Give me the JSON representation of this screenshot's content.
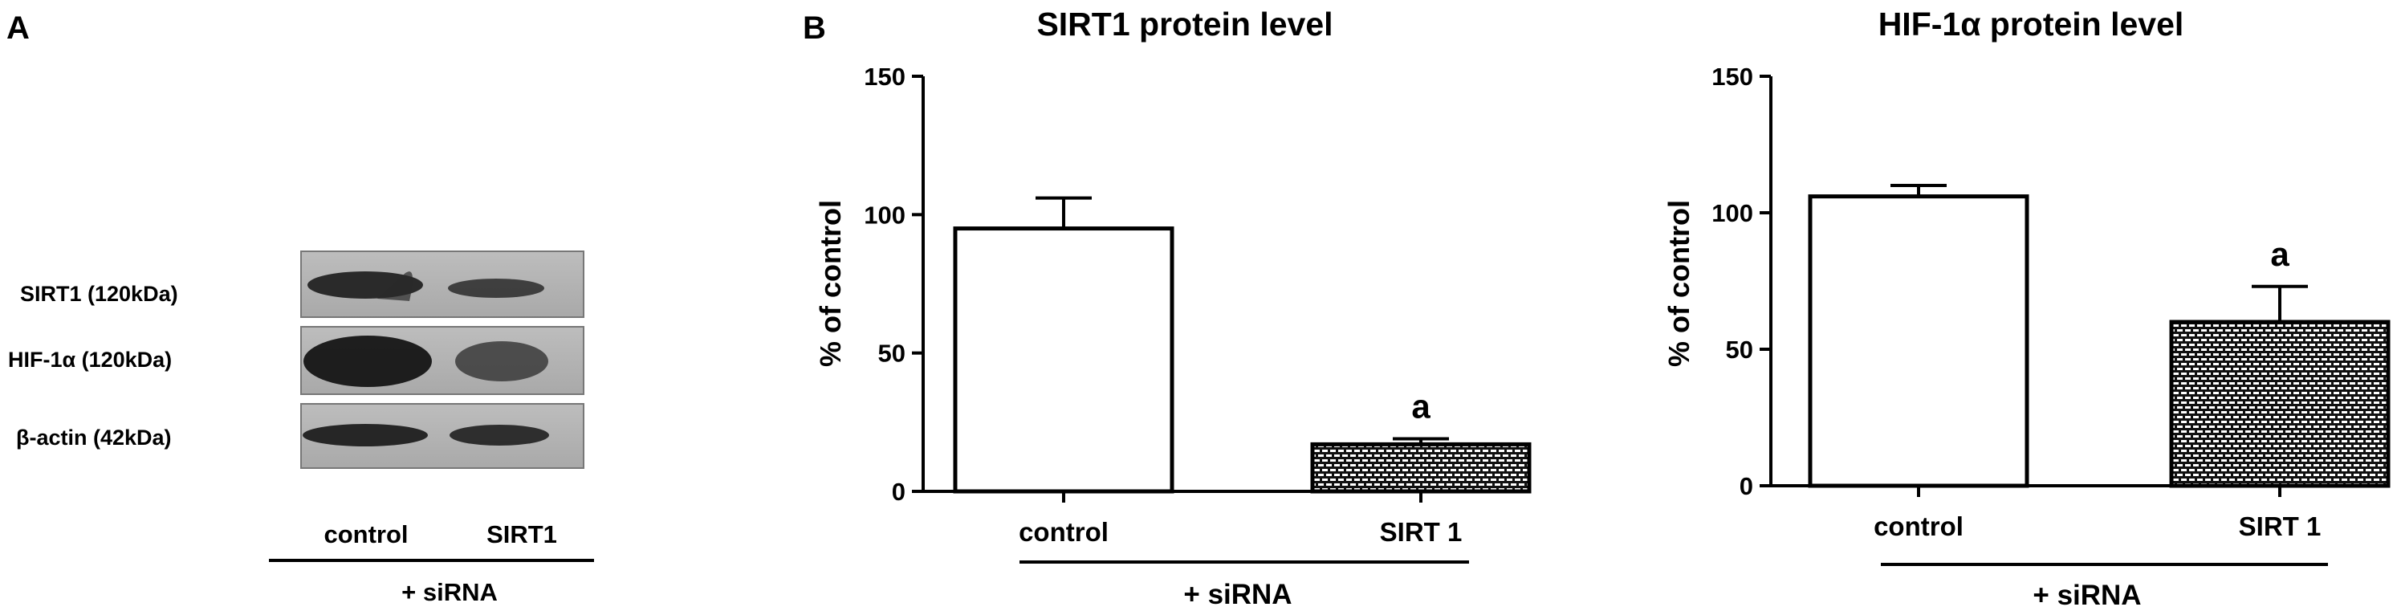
{
  "panel_a": {
    "letter": "A",
    "blot_rows": [
      {
        "label": "SIRT1 (120kDa)"
      },
      {
        "label": "HIF-1α (120kDa)"
      },
      {
        "label": "β-actin (42kDa)"
      }
    ],
    "lanes": [
      "control",
      "SIRT1"
    ],
    "group_label": "+ siRNA"
  },
  "panel_b": {
    "letter": "B"
  },
  "chart_data": [
    {
      "type": "bar",
      "title": "SIRT1 protein level",
      "ylabel": "% of control",
      "ylim": [
        0,
        150
      ],
      "yticks": [
        "0",
        "50",
        "100",
        "150"
      ],
      "categories": [
        "control",
        "SIRT 1"
      ],
      "values": [
        95,
        17
      ],
      "errors": [
        11,
        2
      ],
      "annotations": [
        "",
        "a"
      ],
      "patterns": [
        "open",
        "brick"
      ],
      "group_label": "+ siRNA"
    },
    {
      "type": "bar",
      "title": "HIF-1α protein level",
      "ylabel": "% of control",
      "ylim": [
        0,
        150
      ],
      "yticks": [
        "0",
        "50",
        "100",
        "150"
      ],
      "categories": [
        "control",
        "SIRT 1"
      ],
      "values": [
        106,
        60
      ],
      "errors": [
        4,
        13
      ],
      "annotations": [
        "",
        "a"
      ],
      "patterns": [
        "open",
        "brick"
      ],
      "group_label": "+ siRNA"
    }
  ]
}
